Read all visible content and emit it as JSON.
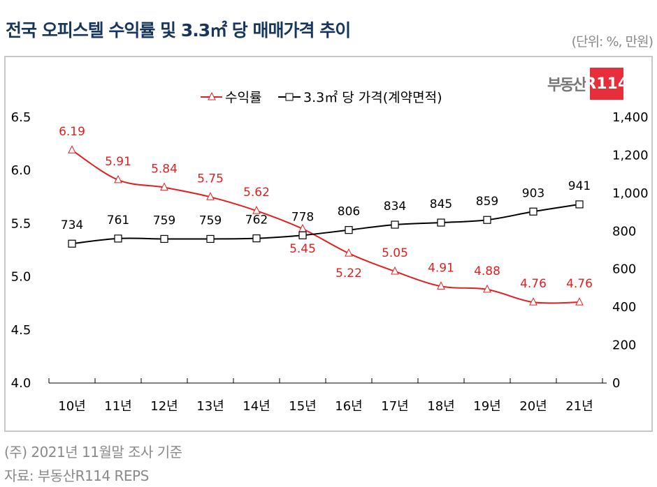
{
  "title": "전국 오피스텔 수익률 및 3.3㎡ 당 매매가격 추이",
  "unit": "(단위: %, 만원)",
  "logo": {
    "text": "부동산",
    "badge": "R114"
  },
  "notes": [
    "(주) 2021년 11월말 조사 기준",
    "자료: 부동산R114 REPS"
  ],
  "chart_data": {
    "type": "line",
    "categories": [
      "10년",
      "11년",
      "12년",
      "13년",
      "14년",
      "15년",
      "16년",
      "17년",
      "18년",
      "19년",
      "20년",
      "21년"
    ],
    "series": [
      {
        "name": "수익률",
        "axis": "left",
        "color": "#e02020",
        "marker": "triangle",
        "values": [
          6.19,
          5.91,
          5.84,
          5.75,
          5.62,
          5.45,
          5.22,
          5.05,
          4.91,
          4.88,
          4.76,
          4.76
        ]
      },
      {
        "name": "3.3㎡ 당 가격(계약면적)",
        "axis": "right",
        "color": "#000000",
        "marker": "square",
        "values": [
          734,
          761,
          759,
          759,
          762,
          778,
          806,
          834,
          845,
          859,
          903,
          941
        ]
      }
    ],
    "y_left": {
      "range": [
        4.0,
        6.5
      ],
      "ticks": [
        "4.0",
        "4.5",
        "5.0",
        "5.5",
        "6.0",
        "6.5"
      ]
    },
    "y_right": {
      "range": [
        0,
        1400
      ],
      "ticks": [
        "0",
        "200",
        "400",
        "600",
        "800",
        "1,000",
        "1,200",
        "1,400"
      ]
    },
    "legend": "top",
    "grid": false
  }
}
